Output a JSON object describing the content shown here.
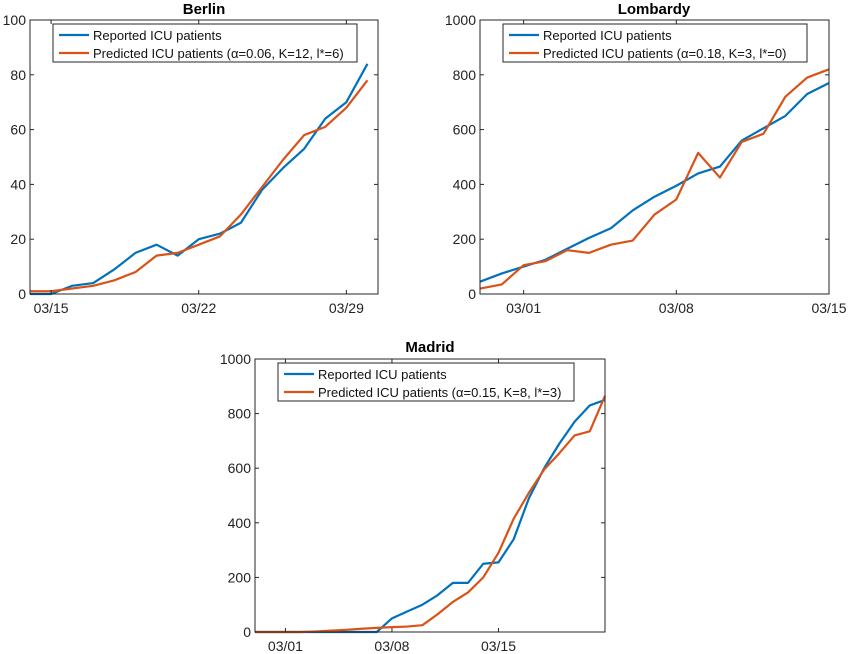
{
  "colors": {
    "reported": "#0072BD",
    "predicted": "#D95319"
  },
  "chart_data": [
    {
      "type": "line",
      "title": "Berlin",
      "x": [
        "03/14",
        "03/15",
        "03/16",
        "03/17",
        "03/18",
        "03/19",
        "03/20",
        "03/21",
        "03/22",
        "03/23",
        "03/24",
        "03/25",
        "03/26",
        "03/27",
        "03/28",
        "03/29",
        "03/30"
      ],
      "xlim": [
        0,
        16.5
      ],
      "xticks": [
        {
          "label": "03/15",
          "index": 1
        },
        {
          "label": "03/22",
          "index": 8
        },
        {
          "label": "03/29",
          "index": 15
        }
      ],
      "ylim": [
        0,
        100
      ],
      "yticks": [
        0,
        20,
        40,
        60,
        80,
        100
      ],
      "series": [
        {
          "name": "Reported ICU patients",
          "color_key": "reported",
          "values": [
            0,
            0,
            3,
            4,
            9,
            15,
            18,
            14,
            20,
            22,
            26,
            38,
            46,
            53,
            64,
            70,
            84
          ]
        },
        {
          "name": "Predicted ICU patients (α=0.06, K=12, l*=6)",
          "color_key": "predicted",
          "values": [
            1,
            1,
            2,
            3,
            5,
            8,
            14,
            15,
            18,
            21,
            29,
            39,
            49,
            58,
            61,
            68,
            78
          ]
        }
      ],
      "legend": "top-left"
    },
    {
      "type": "line",
      "title": "Lombardy",
      "x": [
        "02/28",
        "02/29",
        "03/01",
        "03/02",
        "03/03",
        "03/04",
        "03/05",
        "03/06",
        "03/07",
        "03/08",
        "03/09",
        "03/10",
        "03/11",
        "03/12",
        "03/13",
        "03/14",
        "03/15"
      ],
      "xlim": [
        0,
        16
      ],
      "xticks": [
        {
          "label": "03/01",
          "index": 2
        },
        {
          "label": "03/08",
          "index": 9
        },
        {
          "label": "03/15",
          "index": 16
        }
      ],
      "ylim": [
        0,
        1000
      ],
      "yticks": [
        0,
        200,
        400,
        600,
        800,
        1000
      ],
      "series": [
        {
          "name": "Reported ICU patients",
          "color_key": "reported",
          "values": [
            45,
            75,
            100,
            125,
            165,
            205,
            240,
            305,
            355,
            395,
            440,
            465,
            560,
            605,
            650,
            730,
            770
          ]
        },
        {
          "name": "Predicted ICU patients (α=0.18, K=3, l*=0)",
          "color_key": "predicted",
          "values": [
            20,
            35,
            105,
            120,
            160,
            150,
            180,
            195,
            290,
            345,
            515,
            425,
            555,
            585,
            720,
            790,
            820
          ]
        }
      ],
      "legend": "top-left"
    },
    {
      "type": "line",
      "title": "Madrid",
      "x": [
        "02/28",
        "02/29",
        "03/01",
        "03/02",
        "03/03",
        "03/04",
        "03/05",
        "03/06",
        "03/07",
        "03/08",
        "03/09",
        "03/10",
        "03/11",
        "03/12",
        "03/13",
        "03/14",
        "03/15",
        "03/16",
        "03/17",
        "03/18",
        "03/19",
        "03/20",
        "03/21",
        "03/22"
      ],
      "xlim": [
        0,
        23
      ],
      "xticks": [
        {
          "label": "03/01",
          "index": 2
        },
        {
          "label": "03/08",
          "index": 9
        },
        {
          "label": "03/15",
          "index": 16
        }
      ],
      "ylim": [
        0,
        1000
      ],
      "yticks": [
        0,
        200,
        400,
        600,
        800,
        1000
      ],
      "series": [
        {
          "name": "Reported ICU patients",
          "color_key": "reported",
          "values": [
            0,
            0,
            0,
            0,
            0,
            0,
            0,
            0,
            0,
            50,
            75,
            100,
            135,
            180,
            180,
            250,
            255,
            340,
            490,
            600,
            690,
            770,
            830,
            850
          ]
        },
        {
          "name": "Predicted ICU patients (α=0.15, K=8, l*=3)",
          "color_key": "predicted",
          "values": [
            0,
            0,
            0,
            0,
            2,
            5,
            8,
            12,
            15,
            18,
            20,
            25,
            65,
            110,
            145,
            200,
            290,
            415,
            510,
            595,
            655,
            720,
            735,
            865
          ]
        }
      ],
      "legend": "top-left"
    }
  ]
}
